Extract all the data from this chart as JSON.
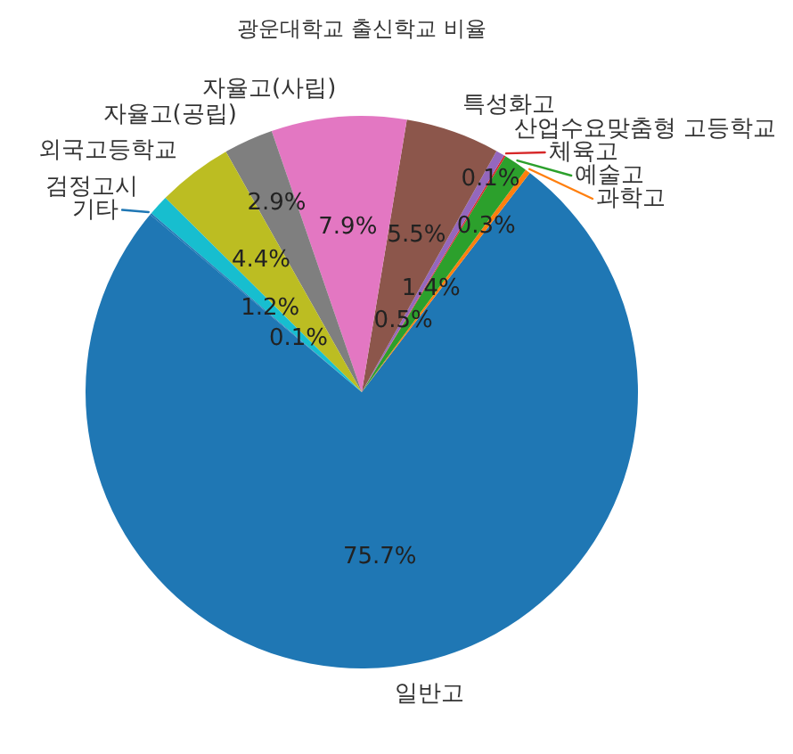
{
  "chart_data": {
    "type": "pie",
    "title": "광운대학교 출신학교 비율",
    "categories": [
      "일반고",
      "과학고",
      "예술고",
      "체육고",
      "산업수요맞춤형 고등학교",
      "특성화고",
      "자율고(사립)",
      "자율고(공립)",
      "외국고등학교",
      "검정고시",
      "기타"
    ],
    "values": [
      75.7,
      0.3,
      1.4,
      0.1,
      0.5,
      5.5,
      7.9,
      2.9,
      4.4,
      1.2,
      0.1
    ],
    "colors": [
      "#1f77b4",
      "#ff7f0e",
      "#2ca02c",
      "#d62728",
      "#9467bd",
      "#8c564b",
      "#e377c2",
      "#7f7f7f",
      "#bcbd22",
      "#17becf",
      "#1f77b4"
    ],
    "value_labels": [
      "75.7%",
      "0.3%",
      "1.4%",
      "0.1%",
      "0.5%",
      "5.5%",
      "7.9%",
      "2.9%",
      "4.4%",
      "1.2%",
      "0.1%"
    ]
  }
}
